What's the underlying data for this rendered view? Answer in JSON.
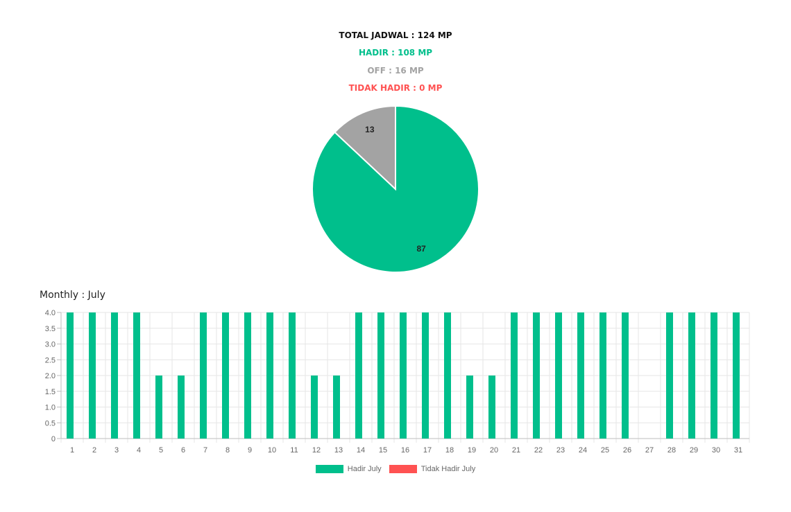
{
  "summary": {
    "total": "TOTAL JADWAL : 124 MP",
    "hadir": "HADIR : 108 MP",
    "off": "OFF : 16 MP",
    "tidak_hadir": "TIDAK HADIR : 0 MP"
  },
  "colors": {
    "hadir": "#00bf8c",
    "off": "#a3a3a3",
    "tidak_hadir": "#ff5252",
    "grid": "#e6e6e6",
    "axis": "#bdbdbd"
  },
  "monthly_title": "Monthly : July",
  "chart_data": [
    {
      "type": "pie",
      "slices": [
        {
          "value": 87,
          "label": "87",
          "color": "#00bf8c"
        },
        {
          "value": 13,
          "label": "13",
          "color": "#a3a3a3"
        }
      ]
    },
    {
      "type": "bar",
      "categories": [
        "1",
        "2",
        "3",
        "4",
        "5",
        "6",
        "7",
        "8",
        "9",
        "10",
        "11",
        "12",
        "13",
        "14",
        "15",
        "16",
        "17",
        "18",
        "19",
        "20",
        "21",
        "22",
        "23",
        "24",
        "25",
        "26",
        "27",
        "28",
        "29",
        "30",
        "31"
      ],
      "series": [
        {
          "name": "Hadir July",
          "color": "#00bf8c",
          "values": [
            4,
            4,
            4,
            4,
            2,
            2,
            4,
            4,
            4,
            4,
            4,
            2,
            2,
            4,
            4,
            4,
            4,
            4,
            2,
            2,
            4,
            4,
            4,
            4,
            4,
            4,
            0,
            4,
            4,
            4,
            4
          ]
        },
        {
          "name": "Tidak Hadir July",
          "color": "#ff5252",
          "values": [
            0,
            0,
            0,
            0,
            0,
            0,
            0,
            0,
            0,
            0,
            0,
            0,
            0,
            0,
            0,
            0,
            0,
            0,
            0,
            0,
            0,
            0,
            0,
            0,
            0,
            0,
            0,
            0,
            0,
            0,
            0
          ]
        }
      ],
      "yticks": [
        "0",
        "0.5",
        "1.0",
        "1.5",
        "2.0",
        "2.5",
        "3.0",
        "3.5",
        "4.0"
      ],
      "ylim": [
        0,
        4
      ],
      "grid": true,
      "legend": "bottom"
    }
  ]
}
